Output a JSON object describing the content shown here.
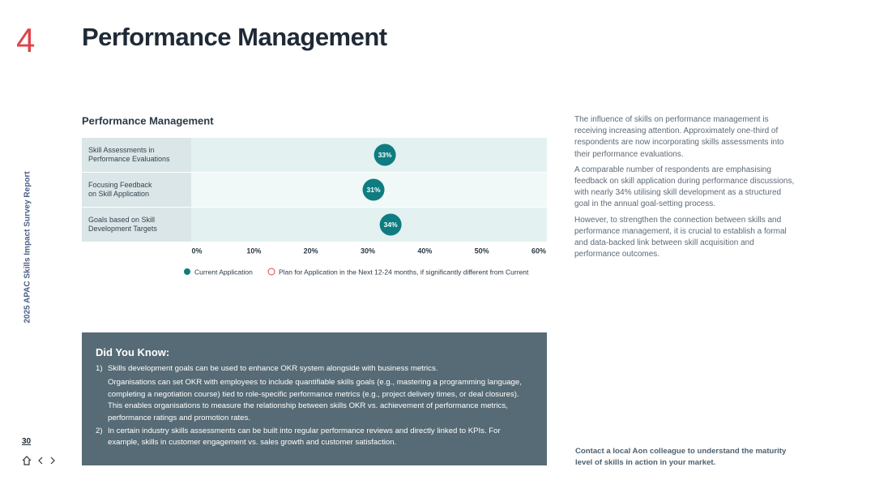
{
  "header": {
    "section_number": "4",
    "title": "Performance Management"
  },
  "sidebar": {
    "report_name": "2025 APAC Skills Impact Survey Report",
    "page_number": "30"
  },
  "chart_data": {
    "type": "dot",
    "title": "Performance Management",
    "categories": [
      "Skill Assessments in\nPerformance Evaluations",
      "Focusing Feedback\non Skill Application",
      "Goals based on Skill\nDevelopment Targets"
    ],
    "series": [
      {
        "name": "Current Application",
        "color": "#0e7c80",
        "values": [
          33,
          31,
          34
        ],
        "value_labels": [
          "33%",
          "31%",
          "34%"
        ]
      },
      {
        "name": "Plan for Application in the Next 12-24 months, if significantly different from Current",
        "color": "#e0434b",
        "values": [
          null,
          null,
          null
        ]
      }
    ],
    "xlim": [
      0,
      60
    ],
    "xticks": [
      {
        "value": 0,
        "label": "0%"
      },
      {
        "value": 10,
        "label": "10%"
      },
      {
        "value": 20,
        "label": "20%"
      },
      {
        "value": 30,
        "label": "30%"
      },
      {
        "value": 40,
        "label": "40%"
      },
      {
        "value": 50,
        "label": "50%"
      },
      {
        "value": 60,
        "label": "60%"
      }
    ]
  },
  "commentary": {
    "paragraphs": [
      "The influence of skills on performance management is receiving increasing attention. Approximately one-third of respondents are now incorporating skills assessments into their performance evaluations.",
      "A comparable number of respondents are emphasising feedback on skill application during performance discussions, with nearly 34% utilising skill development as a structured goal in the annual goal-setting process.",
      "However, to strengthen the connection between skills and performance management, it is crucial to establish a formal and data-backed link between skill acquisition and performance outcomes."
    ]
  },
  "did_you_know": {
    "title": "Did You Know:",
    "items": [
      {
        "number": "1)",
        "heading": "Skills development goals can be used to enhance OKR system alongside with business metrics.",
        "body": "Organisations can set OKR with employees to include quantifiable skills goals (e.g., mastering a programming language, completing a negotiation course) tied to role-specific performance metrics (e.g., project delivery times, or deal closures). This enables organisations to measure the relationship between skills OKR vs. achievement of performance metrics, performance ratings and promotion rates."
      },
      {
        "number": "2)",
        "heading": "In certain industry skills assessments can be built into regular performance reviews and directly linked to KPIs. For example, skills in customer engagement vs. sales growth and customer satisfaction."
      }
    ]
  },
  "contact_note": "Contact a local Aon colleague to understand the maturity level of skills in action in your market."
}
